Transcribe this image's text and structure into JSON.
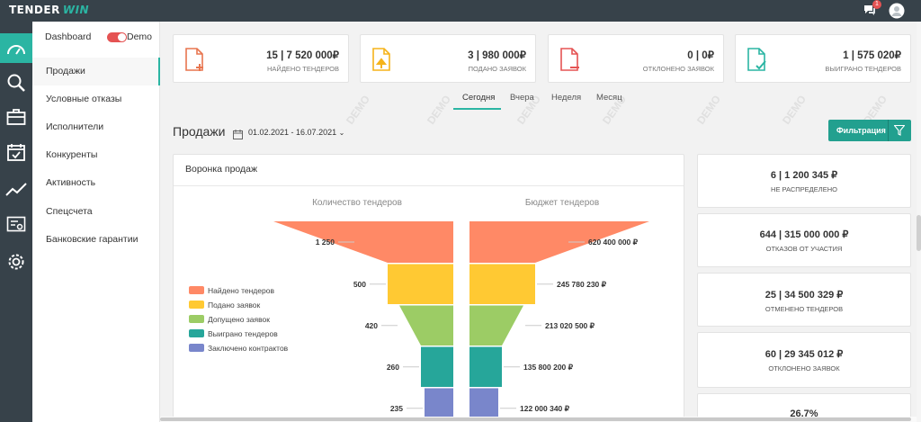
{
  "brand": {
    "part1": "TENDER",
    "part2": "WIN"
  },
  "header": {
    "notifications_count": "1"
  },
  "subnav": {
    "dashboard_label": "Dashboard",
    "demo_label": "Demo",
    "items": [
      {
        "label": "Продажи",
        "active": true
      },
      {
        "label": "Условные отказы"
      },
      {
        "label": "Исполнители"
      },
      {
        "label": "Конкуренты"
      },
      {
        "label": "Активность"
      },
      {
        "label": "Спецсчета"
      },
      {
        "label": "Банковские гарантии"
      }
    ]
  },
  "kpis": [
    {
      "value": "15 | 7 520 000₽",
      "label": "НАЙДЕНО ТЕНДЕРОВ",
      "icon": "file-add-icon",
      "color": "#e8754f"
    },
    {
      "value": "3 | 980 000₽",
      "label": "ПОДАНО ЗАЯВОК",
      "icon": "file-upload-icon",
      "color": "#f5b31a"
    },
    {
      "value": "0 | 0₽",
      "label": "ОТКЛОНЕНО ЗАЯВОК",
      "icon": "file-remove-icon",
      "color": "#e55353"
    },
    {
      "value": "1 | 575 020₽",
      "label": "ВЫИГРАНО ТЕНДЕРОВ",
      "icon": "file-check-icon",
      "color": "#2bb5a3"
    }
  ],
  "tabs": [
    {
      "label": "Сегодня",
      "active": true
    },
    {
      "label": "Вчера"
    },
    {
      "label": "Неделя"
    },
    {
      "label": "Месяц"
    }
  ],
  "section": {
    "title": "Продажи",
    "date_range": "01.02.2021 - 16.07.2021",
    "filter_label": "Фильтрация"
  },
  "watermark": "DEMO",
  "funnel": {
    "panel_title": "Воронка продаж",
    "left_title": "Количество тендеров",
    "right_title": "Бюджет тендеров",
    "legend": [
      {
        "label": "Найдено тендеров",
        "color": "#ff8966"
      },
      {
        "label": "Подано заявок",
        "color": "#ffc933"
      },
      {
        "label": "Допущено заявок",
        "color": "#9ccc65"
      },
      {
        "label": "Выиграно тендеров",
        "color": "#26a69a"
      },
      {
        "label": "Заключено контрактов",
        "color": "#7986cb"
      }
    ],
    "counts": [
      "1 250",
      "500",
      "420",
      "260",
      "235"
    ],
    "budgets": [
      "620 400 000 ₽",
      "245 780 230 ₽",
      "213 020 500 ₽",
      "135 800 200 ₽",
      "122 000 340 ₽"
    ]
  },
  "side_cards": [
    {
      "value": "6  |  1 200 345 ₽",
      "label": "НЕ РАСПРЕДЕЛЕНО"
    },
    {
      "value": "644  |  315 000 000 ₽",
      "label": "ОТКАЗОВ ОТ УЧАСТИЯ"
    },
    {
      "value": "25  |  34 500 329 ₽",
      "label": "ОТМЕНЕНО ТЕНДЕРОВ"
    },
    {
      "value": "60  |  29 345 012 ₽",
      "label": "ОТКЛОНЕНО ЗАЯВОК"
    },
    {
      "value": "26,7%",
      "label": ""
    }
  ]
}
